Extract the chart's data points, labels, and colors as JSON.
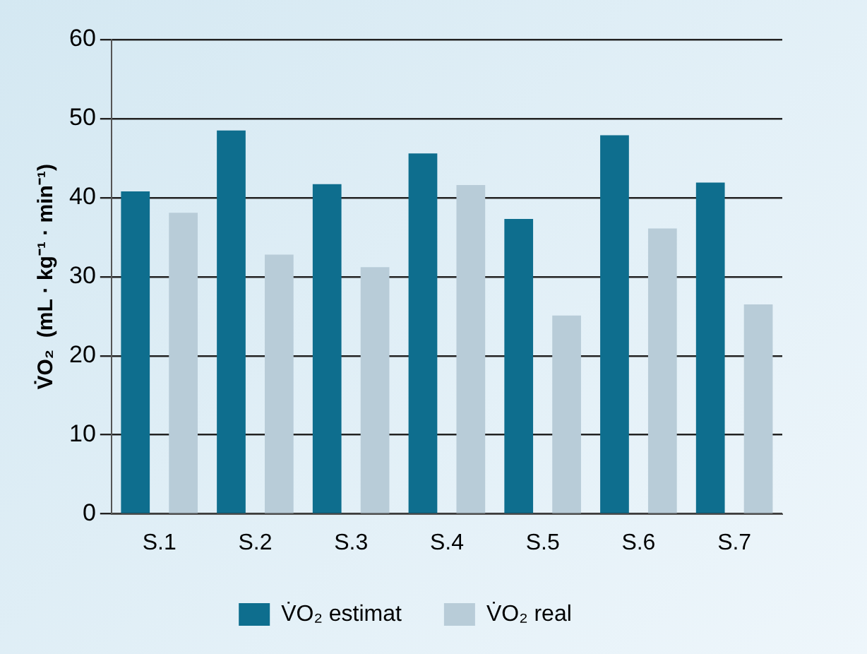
{
  "chart_data": {
    "type": "bar",
    "ylabel": "V̇O₂  (mL · kg⁻¹ · min⁻¹)",
    "categories": [
      "S.1",
      "S.2",
      "S.3",
      "S.4",
      "S.5",
      "S.6",
      "S.7"
    ],
    "series": [
      {
        "name": "V̇O₂ estimat",
        "color": "#0e6e8e",
        "values": [
          40.8,
          48.5,
          41.7,
          45.6,
          37.3,
          47.9,
          41.9
        ]
      },
      {
        "name": "V̇O₂ real",
        "color": "#b8ccd8",
        "values": [
          38.1,
          32.8,
          31.2,
          41.6,
          25.1,
          36.1,
          26.5
        ]
      }
    ],
    "ylim": [
      0,
      60
    ],
    "yticks": [
      0,
      10,
      20,
      30,
      40,
      50,
      60
    ],
    "grid": "y",
    "legend": "bottom"
  }
}
